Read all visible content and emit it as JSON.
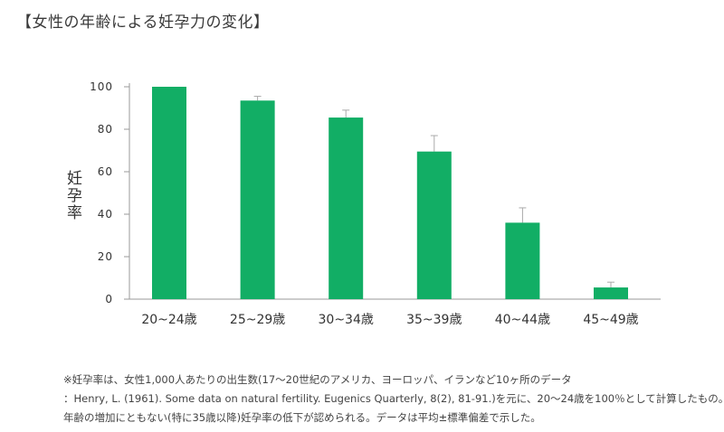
{
  "title": "【女性の年齢による妊孕力の変化】",
  "colors": {
    "bar": "#12ae65",
    "axis": "#9a9a9a",
    "error_bar": "#aaaaaa",
    "text": "#333333"
  },
  "chart_data": {
    "type": "bar",
    "title": "",
    "xlabel": "",
    "ylabel": "妊孕率",
    "ylim": [
      0,
      100
    ],
    "yticks": [
      "0",
      "20",
      "40",
      "60",
      "80",
      "100"
    ],
    "grid": false,
    "categories": [
      "20~24歳",
      "25~29歳",
      "30~34歳",
      "35~39歳",
      "40~44歳",
      "45~49歳"
    ],
    "values": [
      100,
      93.5,
      85.5,
      69.5,
      36,
      5.5
    ],
    "error_upper": [
      100,
      95.5,
      89,
      77,
      43,
      8
    ]
  },
  "notes": [
    "※妊孕率は、女性1,000人あたりの出生数(17〜20世紀のアメリカ、ヨーロッパ、イランなど10ヶ所のデータ",
    "：Henry, L. (1961). Some data on natural fertility. Eugenics Quarterly, 8(2), 81-91.)を元に、20〜24歳を100％として計算したもの。",
    "年齢の増加にともない(特に35歳以降)妊孕率の低下が認められる。データは平均±標準偏差で示した。"
  ]
}
